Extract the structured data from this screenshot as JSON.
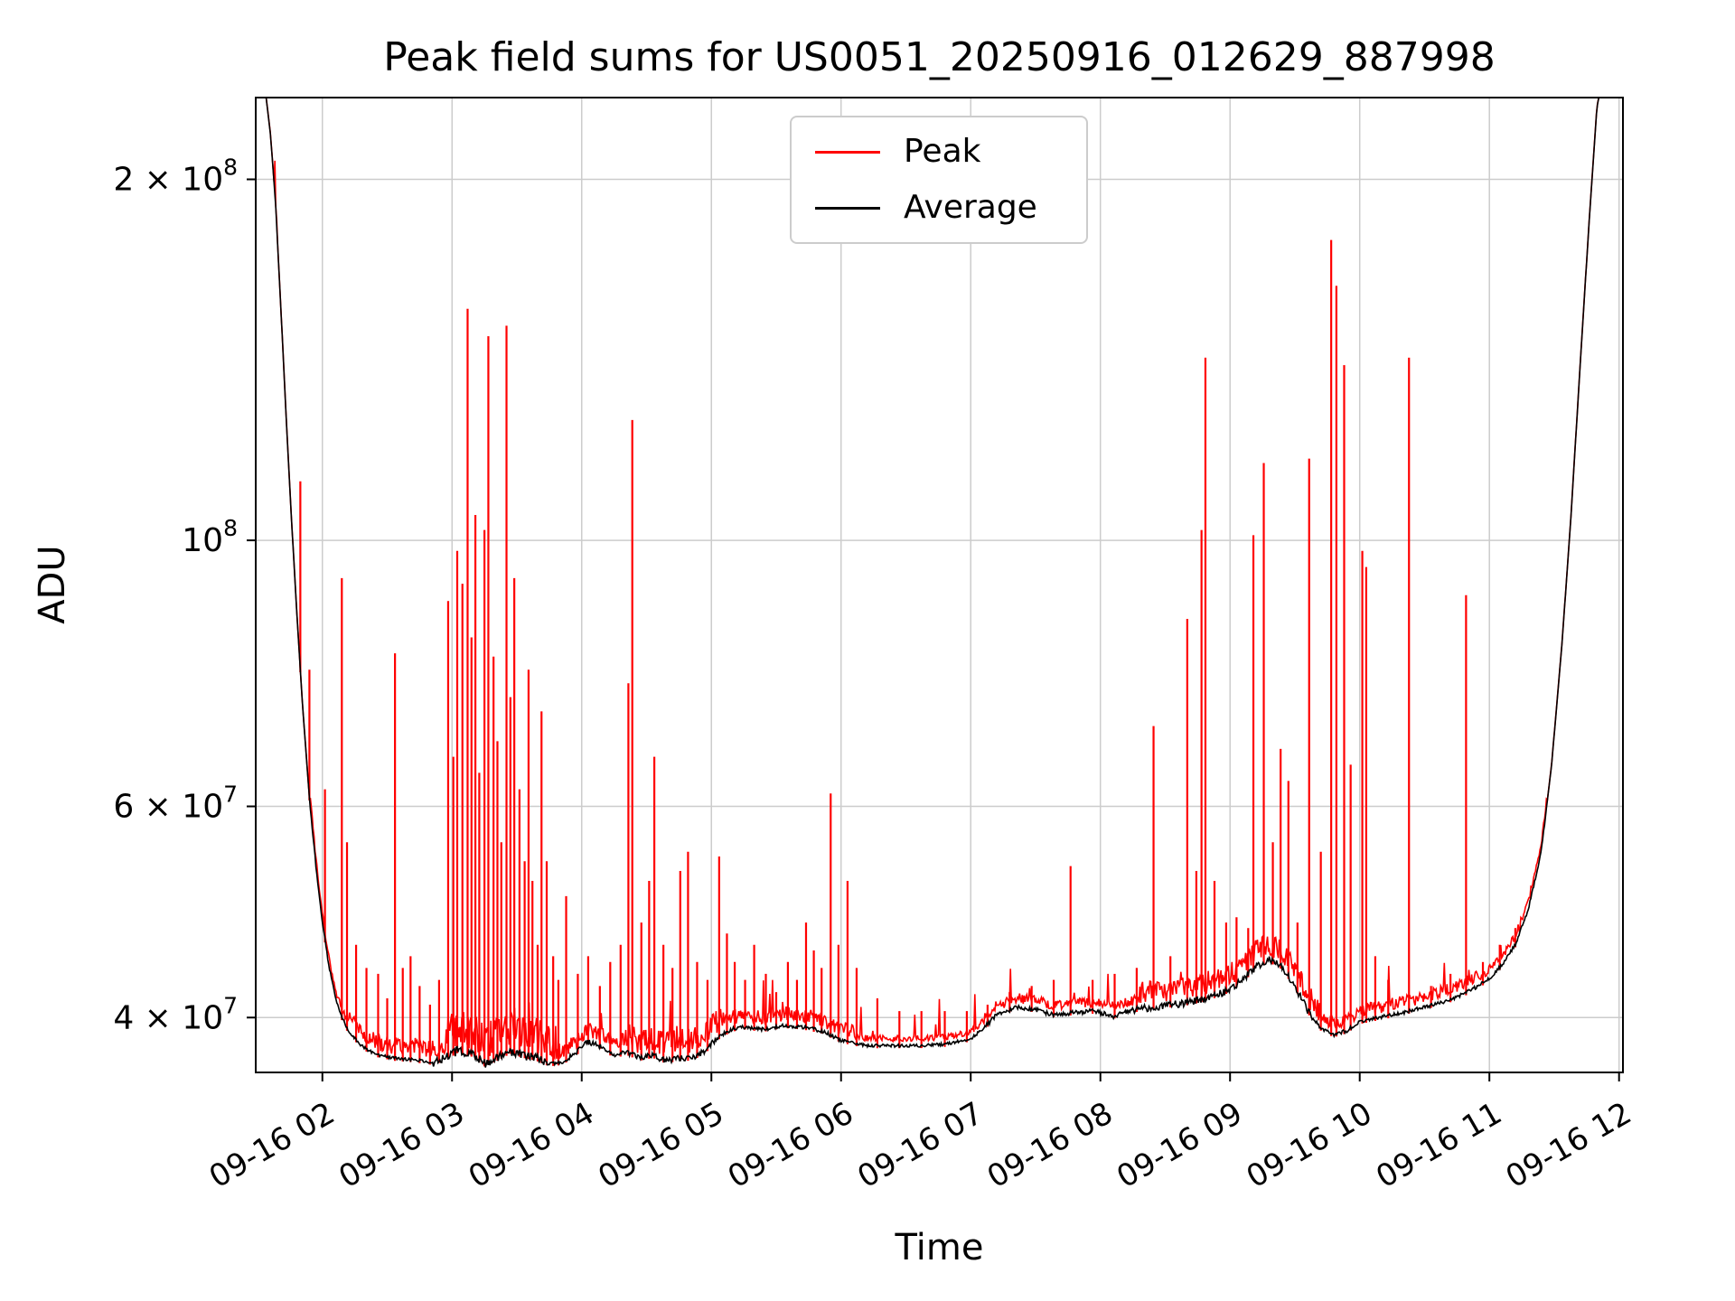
{
  "chart_data": {
    "type": "line",
    "title": "Peak field sums for US0051_20250916_012629_887998",
    "xlabel": "Time",
    "ylabel": "ADU",
    "y_scale": "log",
    "grid": true,
    "xlim": [
      1.486,
      12.03
    ],
    "ylim": [
      36000000.0,
      234000000.0
    ],
    "x_ticks": [
      2,
      3,
      4,
      5,
      6,
      7,
      8,
      9,
      10,
      11,
      12
    ],
    "x_tick_labels": [
      "09-16 02",
      "09-16 03",
      "09-16 04",
      "09-16 05",
      "09-16 06",
      "09-16 07",
      "09-16 08",
      "09-16 09",
      "09-16 10",
      "09-16 11",
      "09-16 12"
    ],
    "y_ticks": [
      {
        "v": 200000000.0,
        "base": "2 × 10",
        "exp": "8"
      },
      {
        "v": 100000000.0,
        "base": "10",
        "exp": "8"
      },
      {
        "v": 60000000.0,
        "base": "6 × 10",
        "exp": "7"
      },
      {
        "v": 40000000.0,
        "base": "4 × 10",
        "exp": "7"
      }
    ],
    "colors": {
      "peak": "#ff0000",
      "average": "#000000",
      "grid": "#cccccc",
      "spine": "#000000"
    },
    "legend": {
      "position": "upper center",
      "entries": [
        {
          "name": "Peak",
          "color": "#ff0000"
        },
        {
          "name": "Average",
          "color": "#000000"
        }
      ]
    },
    "series": {
      "average_keypoints": [
        [
          1.486,
          252000000.0
        ],
        [
          1.55,
          242000000.0
        ],
        [
          1.6,
          218000000.0
        ],
        [
          1.64,
          190000000.0
        ],
        [
          1.68,
          156000000.0
        ],
        [
          1.72,
          127000000.0
        ],
        [
          1.76,
          105000000.0
        ],
        [
          1.8,
          88000000.0
        ],
        [
          1.85,
          72000000.0
        ],
        [
          1.9,
          61000000.0
        ],
        [
          1.95,
          53500000.0
        ],
        [
          2.0,
          48000000.0
        ],
        [
          2.05,
          44200000.0
        ],
        [
          2.1,
          41600000.0
        ],
        [
          2.15,
          40000000.0
        ],
        [
          2.2,
          39000000.0
        ],
        [
          2.3,
          37900000.0
        ],
        [
          2.4,
          37300000.0
        ],
        [
          2.55,
          37000000.0
        ],
        [
          2.7,
          36900000.0
        ],
        [
          2.85,
          36700000.0
        ],
        [
          2.95,
          37000000.0
        ],
        [
          3.05,
          37600000.0
        ],
        [
          3.15,
          37300000.0
        ],
        [
          3.25,
          36600000.0
        ],
        [
          3.35,
          37000000.0
        ],
        [
          3.45,
          37500000.0
        ],
        [
          3.55,
          37200000.0
        ],
        [
          3.65,
          37000000.0
        ],
        [
          3.75,
          36600000.0
        ],
        [
          3.85,
          36700000.0
        ],
        [
          3.95,
          37300000.0
        ],
        [
          4.05,
          38200000.0
        ],
        [
          4.15,
          37800000.0
        ],
        [
          4.25,
          37200000.0
        ],
        [
          4.35,
          37400000.0
        ],
        [
          4.45,
          37000000.0
        ],
        [
          4.55,
          37200000.0
        ],
        [
          4.65,
          36800000.0
        ],
        [
          4.75,
          37000000.0
        ],
        [
          4.85,
          37000000.0
        ],
        [
          4.95,
          37500000.0
        ],
        [
          5.05,
          38500000.0
        ],
        [
          5.15,
          39100000.0
        ],
        [
          5.25,
          39300000.0
        ],
        [
          5.4,
          39100000.0
        ],
        [
          5.55,
          39400000.0
        ],
        [
          5.7,
          39300000.0
        ],
        [
          5.85,
          39000000.0
        ],
        [
          6.0,
          38300000.0
        ],
        [
          6.2,
          37900000.0
        ],
        [
          6.4,
          37900000.0
        ],
        [
          6.6,
          37900000.0
        ],
        [
          6.8,
          38000000.0
        ],
        [
          7.0,
          38400000.0
        ],
        [
          7.1,
          39200000.0
        ],
        [
          7.2,
          40200000.0
        ],
        [
          7.35,
          40800000.0
        ],
        [
          7.5,
          40600000.0
        ],
        [
          7.65,
          40200000.0
        ],
        [
          7.8,
          40400000.0
        ],
        [
          7.95,
          40500000.0
        ],
        [
          8.1,
          40100000.0
        ],
        [
          8.25,
          40600000.0
        ],
        [
          8.4,
          40800000.0
        ],
        [
          8.55,
          41000000.0
        ],
        [
          8.7,
          41200000.0
        ],
        [
          8.85,
          41600000.0
        ],
        [
          9.0,
          42200000.0
        ],
        [
          9.1,
          43000000.0
        ],
        [
          9.2,
          44100000.0
        ],
        [
          9.3,
          44700000.0
        ],
        [
          9.4,
          44100000.0
        ],
        [
          9.5,
          42500000.0
        ],
        [
          9.6,
          40500000.0
        ],
        [
          9.7,
          39200000.0
        ],
        [
          9.8,
          38700000.0
        ],
        [
          9.9,
          39000000.0
        ],
        [
          10.0,
          39700000.0
        ],
        [
          10.15,
          40000000.0
        ],
        [
          10.3,
          40300000.0
        ],
        [
          10.5,
          40800000.0
        ],
        [
          10.7,
          41400000.0
        ],
        [
          10.85,
          42100000.0
        ],
        [
          11.0,
          43100000.0
        ],
        [
          11.1,
          44300000.0
        ],
        [
          11.2,
          46000000.0
        ],
        [
          11.3,
          49200000.0
        ],
        [
          11.4,
          55000000.0
        ],
        [
          11.48,
          65000000.0
        ],
        [
          11.56,
          82000000.0
        ],
        [
          11.63,
          105000000.0
        ],
        [
          11.7,
          140000000.0
        ],
        [
          11.77,
          185000000.0
        ],
        [
          11.83,
          230000000.0
        ],
        [
          11.89,
          248000000.0
        ],
        [
          12.03,
          260000000.0
        ]
      ],
      "peak_spikes": [
        [
          1.83,
          112000000.0
        ],
        [
          1.9,
          78000000.0
        ],
        [
          2.02,
          62000000.0
        ],
        [
          2.15,
          93000000.0
        ],
        [
          2.19,
          56000000.0
        ],
        [
          2.26,
          46000000.0
        ],
        [
          2.34,
          44000000.0
        ],
        [
          2.43,
          43500000.0
        ],
        [
          2.5,
          41500000.0
        ],
        [
          2.56,
          80500000.0
        ],
        [
          2.62,
          44000000.0
        ],
        [
          2.68,
          45000000.0
        ],
        [
          2.75,
          42500000.0
        ],
        [
          2.83,
          41000000.0
        ],
        [
          2.9,
          43000000.0
        ],
        [
          2.97,
          89000000.0
        ],
        [
          3.01,
          66000000.0
        ],
        [
          3.04,
          98000000.0
        ],
        [
          3.08,
          92000000.0
        ],
        [
          3.12,
          156000000.0
        ],
        [
          3.15,
          83000000.0
        ],
        [
          3.18,
          105000000.0
        ],
        [
          3.21,
          64000000.0
        ],
        [
          3.25,
          102000000.0
        ],
        [
          3.28,
          148000000.0
        ],
        [
          3.32,
          80000000.0
        ],
        [
          3.35,
          68000000.0
        ],
        [
          3.38,
          56000000.0
        ],
        [
          3.42,
          151000000.0
        ],
        [
          3.45,
          74000000.0
        ],
        [
          3.48,
          93000000.0
        ],
        [
          3.52,
          62000000.0
        ],
        [
          3.56,
          54000000.0
        ],
        [
          3.59,
          78000000.0
        ],
        [
          3.62,
          52000000.0
        ],
        [
          3.66,
          46000000.0
        ],
        [
          3.69,
          72000000.0
        ],
        [
          3.73,
          54000000.0
        ],
        [
          3.78,
          45000000.0
        ],
        [
          3.82,
          43000000.0
        ],
        [
          3.88,
          50500000.0
        ],
        [
          3.97,
          43500000.0
        ],
        [
          4.05,
          45000000.0
        ],
        [
          4.14,
          42500000.0
        ],
        [
          4.22,
          44500000.0
        ],
        [
          4.3,
          46000000.0
        ],
        [
          4.36,
          76000000.0
        ],
        [
          4.39,
          126000000.0
        ],
        [
          4.46,
          48000000.0
        ],
        [
          4.52,
          52000000.0
        ],
        [
          4.56,
          66000000.0
        ],
        [
          4.63,
          46000000.0
        ],
        [
          4.7,
          44000000.0
        ],
        [
          4.76,
          53000000.0
        ],
        [
          4.82,
          55000000.0
        ],
        [
          4.89,
          44500000.0
        ],
        [
          4.97,
          43000000.0
        ],
        [
          5.06,
          54500000.0
        ],
        [
          5.12,
          47000000.0
        ],
        [
          5.18,
          44500000.0
        ],
        [
          5.26,
          43000000.0
        ],
        [
          5.33,
          46000000.0
        ],
        [
          5.42,
          43500000.0
        ],
        [
          5.5,
          42000000.0
        ],
        [
          5.59,
          44500000.0
        ],
        [
          5.66,
          43000000.0
        ],
        [
          5.73,
          48000000.0
        ],
        [
          5.79,
          45500000.0
        ],
        [
          5.85,
          44000000.0
        ],
        [
          5.92,
          61500000.0
        ],
        [
          5.98,
          46000000.0
        ],
        [
          6.05,
          52000000.0
        ],
        [
          6.12,
          44000000.0
        ],
        [
          6.28,
          41500000.0
        ],
        [
          6.45,
          40500000.0
        ],
        [
          6.62,
          40500000.0
        ],
        [
          6.8,
          40500000.0
        ],
        [
          6.97,
          40500000.0
        ],
        [
          7.13,
          41000000.0
        ],
        [
          7.3,
          42000000.0
        ],
        [
          7.47,
          42500000.0
        ],
        [
          7.64,
          43000000.0
        ],
        [
          7.77,
          53500000.0
        ],
        [
          7.94,
          43000000.0
        ],
        [
          8.11,
          43500000.0
        ],
        [
          8.28,
          44000000.0
        ],
        [
          8.41,
          70000000.0
        ],
        [
          8.54,
          45000000.0
        ],
        [
          8.67,
          86000000.0
        ],
        [
          8.74,
          53000000.0
        ],
        [
          8.78,
          102000000.0
        ],
        [
          8.81,
          142000000.0
        ],
        [
          8.88,
          52000000.0
        ],
        [
          8.97,
          48000000.0
        ],
        [
          9.05,
          48500000.0
        ],
        [
          9.14,
          47500000.0
        ],
        [
          9.18,
          101000000.0
        ],
        [
          9.26,
          116000000.0
        ],
        [
          9.33,
          56000000.0
        ],
        [
          9.39,
          67000000.0
        ],
        [
          9.45,
          63000000.0
        ],
        [
          9.52,
          48000000.0
        ],
        [
          9.61,
          117000000.0
        ],
        [
          9.7,
          55000000.0
        ],
        [
          9.78,
          178000000.0
        ],
        [
          9.82,
          163000000.0
        ],
        [
          9.88,
          140000000.0
        ],
        [
          9.93,
          65000000.0
        ],
        [
          10.02,
          98000000.0
        ],
        [
          10.05,
          95000000.0
        ],
        [
          10.12,
          45000000.0
        ],
        [
          10.22,
          43000000.0
        ],
        [
          10.38,
          142000000.0
        ],
        [
          10.55,
          42500000.0
        ],
        [
          10.7,
          43500000.0
        ],
        [
          10.82,
          90000000.0
        ],
        [
          10.95,
          44500000.0
        ],
        [
          11.08,
          46000000.0
        ],
        [
          11.2,
          47500000.0
        ]
      ],
      "avg_noise_base": 0.0028,
      "avg_noise_regions": [
        [
          2.85,
          3.75,
          0.009
        ],
        [
          3.9,
          4.15,
          0.006
        ],
        [
          4.3,
          5.05,
          0.0055
        ],
        [
          5.05,
          6.0,
          0.004
        ],
        [
          7.1,
          8.25,
          0.0045
        ],
        [
          8.25,
          9.65,
          0.007
        ],
        [
          9.65,
          11.2,
          0.0035
        ]
      ],
      "peak_offset": 0.008,
      "peak_noise_base": 0.014,
      "peak_noise_regions": [
        [
          2.2,
          2.95,
          0.035
        ],
        [
          2.95,
          3.75,
          0.075
        ],
        [
          3.75,
          4.3,
          0.03
        ],
        [
          4.3,
          5.1,
          0.05
        ],
        [
          5.1,
          6.1,
          0.03
        ],
        [
          6.1,
          7.1,
          0.012
        ],
        [
          7.1,
          8.3,
          0.02
        ],
        [
          8.3,
          9.7,
          0.045
        ],
        [
          9.7,
          10.9,
          0.025
        ],
        [
          10.9,
          11.35,
          0.018
        ]
      ]
    }
  }
}
